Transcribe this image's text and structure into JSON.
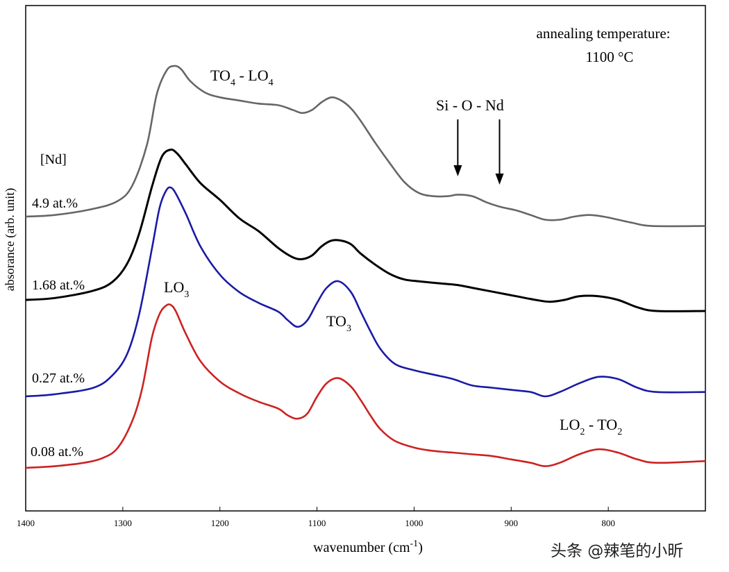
{
  "chart_data": {
    "type": "line",
    "title": "",
    "xlabel_main": "wavenumber (cm",
    "xlabel_sup": "-1",
    "xlabel_close": ")",
    "ylabel": "absorance (arb. unit)",
    "x_reversed": true,
    "xlim": [
      1400,
      700
    ],
    "xticks": [
      1400,
      1300,
      1200,
      1100,
      1000,
      900,
      800
    ],
    "tick_labels": [
      "1400",
      "1300",
      "1200",
      "1100",
      "1000",
      "900",
      "800"
    ],
    "legend_title": "[Nd]",
    "annotation_corner": [
      "annealing temperature:",
      "1100 °C"
    ],
    "annotations": {
      "to4_lo4": {
        "a": "TO",
        "a_sub": "4",
        "sep": " - LO",
        "b_sub": "4"
      },
      "sio_nd": "Si - O - Nd",
      "lo3": {
        "a": "LO",
        "a_sub": "3"
      },
      "to3": {
        "a": "TO",
        "a_sub": "3"
      },
      "lo2_to2": {
        "a": "LO",
        "a_sub": "2",
        "sep": " - TO",
        "b_sub": "2"
      }
    },
    "arrows_at_wavenumber": [
      955,
      912
    ],
    "series": [
      {
        "name": "4.9 at.%",
        "color": "#666666",
        "x": [
          1400,
          1370,
          1330,
          1305,
          1290,
          1275,
          1265,
          1255,
          1247,
          1240,
          1230,
          1215,
          1200,
          1180,
          1160,
          1140,
          1125,
          1115,
          1105,
          1095,
          1085,
          1075,
          1065,
          1055,
          1040,
          1025,
          1010,
          995,
          980,
          965,
          955,
          940,
          925,
          910,
          895,
          880,
          865,
          850,
          835,
          820,
          805,
          790,
          775,
          755,
          700
        ],
        "y": [
          0.0,
          0.01,
          0.05,
          0.1,
          0.2,
          0.46,
          0.78,
          0.93,
          0.96,
          0.94,
          0.86,
          0.79,
          0.76,
          0.74,
          0.72,
          0.71,
          0.68,
          0.66,
          0.68,
          0.73,
          0.76,
          0.74,
          0.69,
          0.61,
          0.47,
          0.34,
          0.22,
          0.15,
          0.13,
          0.13,
          0.14,
          0.13,
          0.09,
          0.06,
          0.04,
          0.01,
          -0.02,
          -0.02,
          0.0,
          0.01,
          0.0,
          -0.02,
          -0.04,
          -0.06,
          -0.06
        ]
      },
      {
        "name": "1.68 at.%",
        "color": "#000000",
        "x": [
          1400,
          1370,
          1330,
          1310,
          1295,
          1283,
          1270,
          1260,
          1251,
          1244,
          1235,
          1220,
          1200,
          1180,
          1160,
          1140,
          1125,
          1115,
          1105,
          1095,
          1085,
          1075,
          1065,
          1055,
          1040,
          1025,
          1010,
          995,
          975,
          955,
          935,
          915,
          895,
          875,
          860,
          845,
          830,
          810,
          790,
          770,
          750,
          700
        ],
        "y": [
          0.0,
          0.01,
          0.05,
          0.1,
          0.2,
          0.36,
          0.61,
          0.77,
          0.81,
          0.79,
          0.73,
          0.63,
          0.54,
          0.44,
          0.37,
          0.28,
          0.23,
          0.22,
          0.24,
          0.29,
          0.32,
          0.32,
          0.3,
          0.25,
          0.19,
          0.14,
          0.11,
          0.1,
          0.09,
          0.08,
          0.06,
          0.04,
          0.02,
          0.0,
          -0.01,
          0.0,
          0.02,
          0.02,
          0.0,
          -0.04,
          -0.06,
          -0.06
        ]
      },
      {
        "name": "0.27 at.%",
        "color": "#1a1aa6",
        "x": [
          1400,
          1370,
          1330,
          1310,
          1295,
          1283,
          1270,
          1262,
          1255,
          1250,
          1245,
          1235,
          1220,
          1200,
          1180,
          1160,
          1140,
          1130,
          1120,
          1110,
          1100,
          1090,
          1078,
          1065,
          1055,
          1045,
          1035,
          1020,
          1000,
          980,
          960,
          940,
          920,
          900,
          880,
          865,
          850,
          830,
          810,
          790,
          770,
          750,
          700
        ],
        "y": [
          0.0,
          0.01,
          0.04,
          0.1,
          0.2,
          0.38,
          0.68,
          0.87,
          0.95,
          0.96,
          0.93,
          0.84,
          0.69,
          0.56,
          0.48,
          0.43,
          0.39,
          0.35,
          0.32,
          0.35,
          0.43,
          0.5,
          0.53,
          0.48,
          0.39,
          0.3,
          0.22,
          0.15,
          0.12,
          0.1,
          0.08,
          0.05,
          0.04,
          0.03,
          0.02,
          0.0,
          0.02,
          0.06,
          0.09,
          0.08,
          0.04,
          0.02,
          0.02
        ]
      },
      {
        "name": "0.08 at.%",
        "color": "#cc2222",
        "x": [
          1400,
          1370,
          1340,
          1320,
          1305,
          1290,
          1280,
          1270,
          1262,
          1255,
          1250,
          1245,
          1235,
          1220,
          1200,
          1180,
          1160,
          1140,
          1130,
          1120,
          1110,
          1100,
          1090,
          1078,
          1065,
          1055,
          1045,
          1035,
          1020,
          1000,
          980,
          960,
          940,
          920,
          900,
          880,
          865,
          850,
          830,
          810,
          790,
          770,
          750,
          700
        ],
        "y": [
          0.0,
          0.01,
          0.03,
          0.06,
          0.12,
          0.28,
          0.47,
          0.77,
          0.91,
          0.96,
          0.96,
          0.92,
          0.79,
          0.63,
          0.51,
          0.44,
          0.39,
          0.35,
          0.31,
          0.29,
          0.32,
          0.42,
          0.5,
          0.53,
          0.48,
          0.4,
          0.31,
          0.23,
          0.16,
          0.12,
          0.1,
          0.09,
          0.08,
          0.07,
          0.05,
          0.03,
          0.01,
          0.03,
          0.08,
          0.11,
          0.09,
          0.05,
          0.03,
          0.04
        ]
      }
    ]
  },
  "watermark": "头条 @辣笔的小昕"
}
